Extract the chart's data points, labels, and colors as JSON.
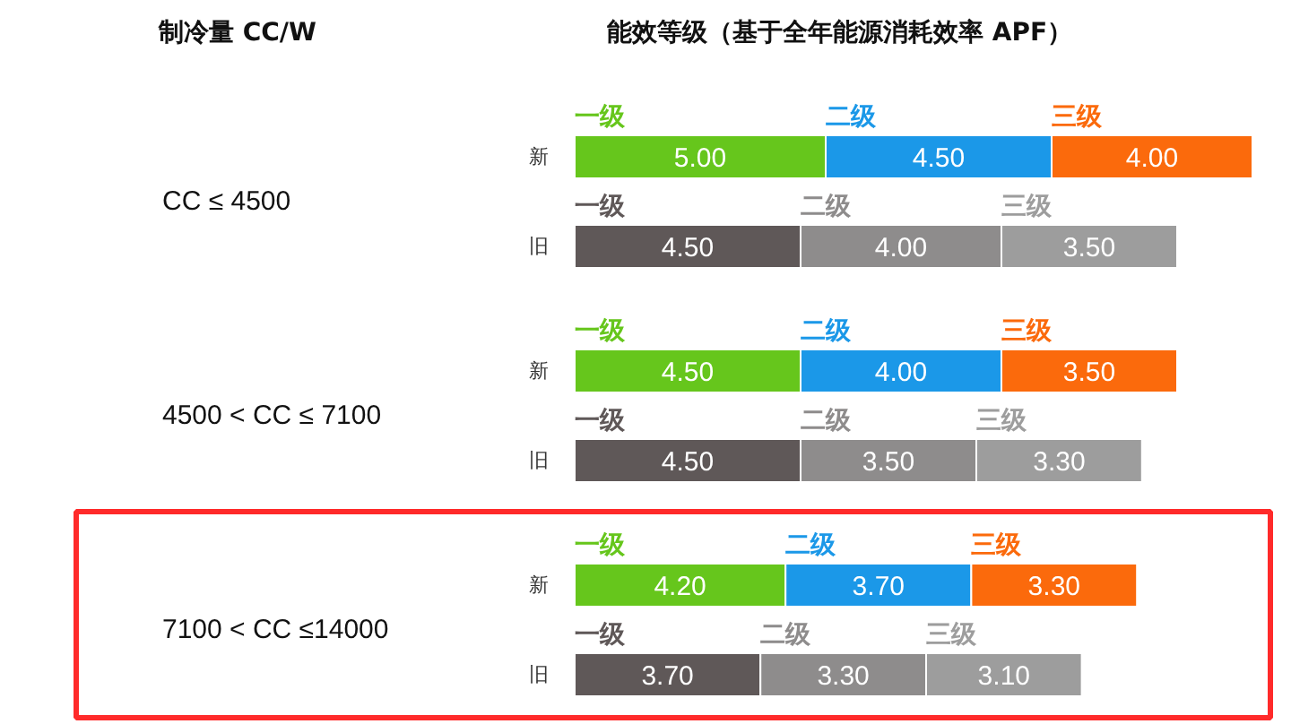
{
  "chart_data": {
    "type": "bar",
    "orientation": "horizontal",
    "stacked": true,
    "title": "能效等级（基于全年能源消耗效率 APF）",
    "categories": [
      "新",
      "旧",
      "新",
      "旧",
      "新",
      "旧"
    ],
    "annotations": [
      "制冷量 CC/W",
      "CC ≤ 4500",
      "4500 < CC ≤ 7100",
      "7100 < CC ≤14000"
    ],
    "series": [
      {
        "name": "一级",
        "colors": [
          "#66c61c",
          "#5f5858",
          "#66c61c",
          "#5f5858",
          "#66c61c",
          "#5f5858"
        ],
        "values": [
          5.0,
          4.5,
          4.5,
          4.5,
          4.2,
          3.7
        ],
        "value_labels": [
          "5.00",
          "4.50",
          "4.50",
          "4.50",
          "4.20",
          "3.70"
        ]
      },
      {
        "name": "二级",
        "colors": [
          "#1b98e8",
          "#8e8c8c",
          "#1b98e8",
          "#8e8c8c",
          "#1b98e8",
          "#8e8c8c"
        ],
        "values": [
          4.5,
          4.0,
          4.0,
          3.5,
          3.7,
          3.3
        ],
        "value_labels": [
          "4.50",
          "4.00",
          "4.00",
          "3.50",
          "3.70",
          "3.30"
        ]
      },
      {
        "name": "三级",
        "colors": [
          "#fb6a0c",
          "#9d9d9d",
          "#fb6a0c",
          "#9d9d9d",
          "#fb6a0c",
          "#9d9d9d"
        ],
        "values": [
          4.0,
          3.5,
          3.5,
          3.3,
          3.3,
          3.1
        ],
        "value_labels": [
          "4.00",
          "3.50",
          "3.50",
          "3.30",
          "3.30",
          "3.10"
        ]
      }
    ]
  }
}
